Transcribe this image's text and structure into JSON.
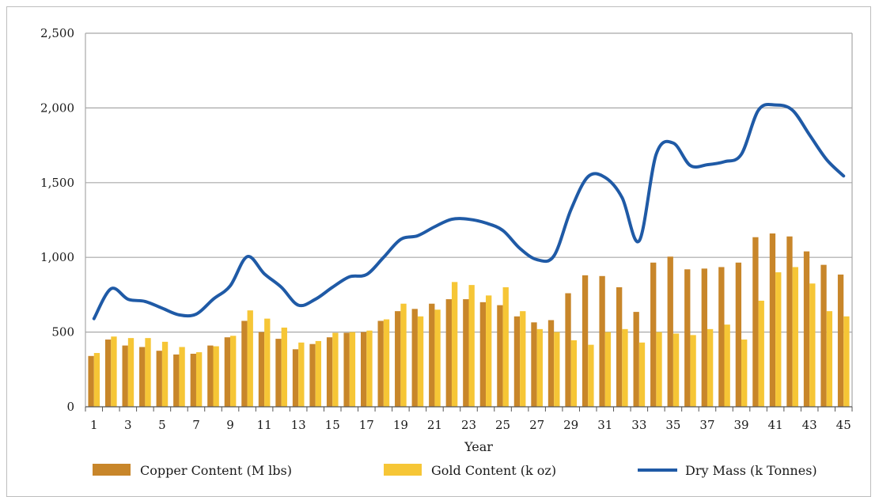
{
  "chart_data": {
    "type": "bar",
    "xlabel": "Year",
    "ylabel": "",
    "ylim": [
      0,
      2500
    ],
    "yticks": [
      0,
      500,
      1000,
      1500,
      2000,
      2500
    ],
    "ytick_labels": [
      "0",
      "500",
      "1,000",
      "1,500",
      "2,000",
      "2,500"
    ],
    "grid": "horizontal",
    "legend_position": "bottom",
    "colors": {
      "copper": "#c8862a",
      "gold": "#f6c636",
      "dry_mass": "#1f5aa6",
      "grid": "#a8a8a8"
    },
    "categories": [
      1,
      2,
      3,
      4,
      5,
      6,
      7,
      8,
      9,
      10,
      11,
      12,
      13,
      14,
      15,
      16,
      17,
      18,
      19,
      20,
      21,
      22,
      23,
      24,
      25,
      26,
      27,
      28,
      29,
      30,
      31,
      32,
      33,
      34,
      35,
      36,
      37,
      38,
      39,
      40,
      41,
      42,
      43,
      44,
      45
    ],
    "x_tick_labels": [
      "1",
      "3",
      "5",
      "7",
      "9",
      "11",
      "13",
      "15",
      "17",
      "19",
      "21",
      "23",
      "25",
      "27",
      "29",
      "31",
      "33",
      "35",
      "37",
      "39",
      "41",
      "43",
      "45"
    ],
    "series": [
      {
        "name": "Copper Content (M lbs)",
        "kind": "bar",
        "values": [
          340,
          450,
          410,
          400,
          375,
          350,
          355,
          410,
          465,
          575,
          500,
          455,
          385,
          420,
          465,
          495,
          500,
          575,
          640,
          655,
          690,
          720,
          720,
          700,
          680,
          605,
          565,
          580,
          760,
          880,
          875,
          800,
          635,
          965,
          1005,
          920,
          925,
          935,
          965,
          1135,
          1160,
          1140,
          1040,
          950,
          885
        ]
      },
      {
        "name": "Gold Content (k oz)",
        "kind": "bar",
        "values": [
          360,
          470,
          460,
          460,
          435,
          400,
          365,
          405,
          475,
          645,
          590,
          530,
          430,
          440,
          495,
          500,
          510,
          585,
          690,
          605,
          650,
          835,
          815,
          745,
          800,
          640,
          520,
          500,
          445,
          415,
          500,
          520,
          430,
          500,
          490,
          480,
          520,
          550,
          450,
          710,
          900,
          935,
          825,
          640,
          605
        ]
      },
      {
        "name": "Dry Mass (k Tonnes)",
        "kind": "line",
        "values": [
          590,
          790,
          720,
          705,
          660,
          615,
          620,
          720,
          810,
          1005,
          890,
          800,
          680,
          720,
          800,
          870,
          885,
          1000,
          1120,
          1145,
          1205,
          1255,
          1255,
          1230,
          1180,
          1060,
          985,
          1010,
          1320,
          1540,
          1535,
          1400,
          1110,
          1690,
          1765,
          1615,
          1620,
          1640,
          1690,
          1985,
          2020,
          1985,
          1820,
          1655,
          1545
        ]
      }
    ]
  }
}
